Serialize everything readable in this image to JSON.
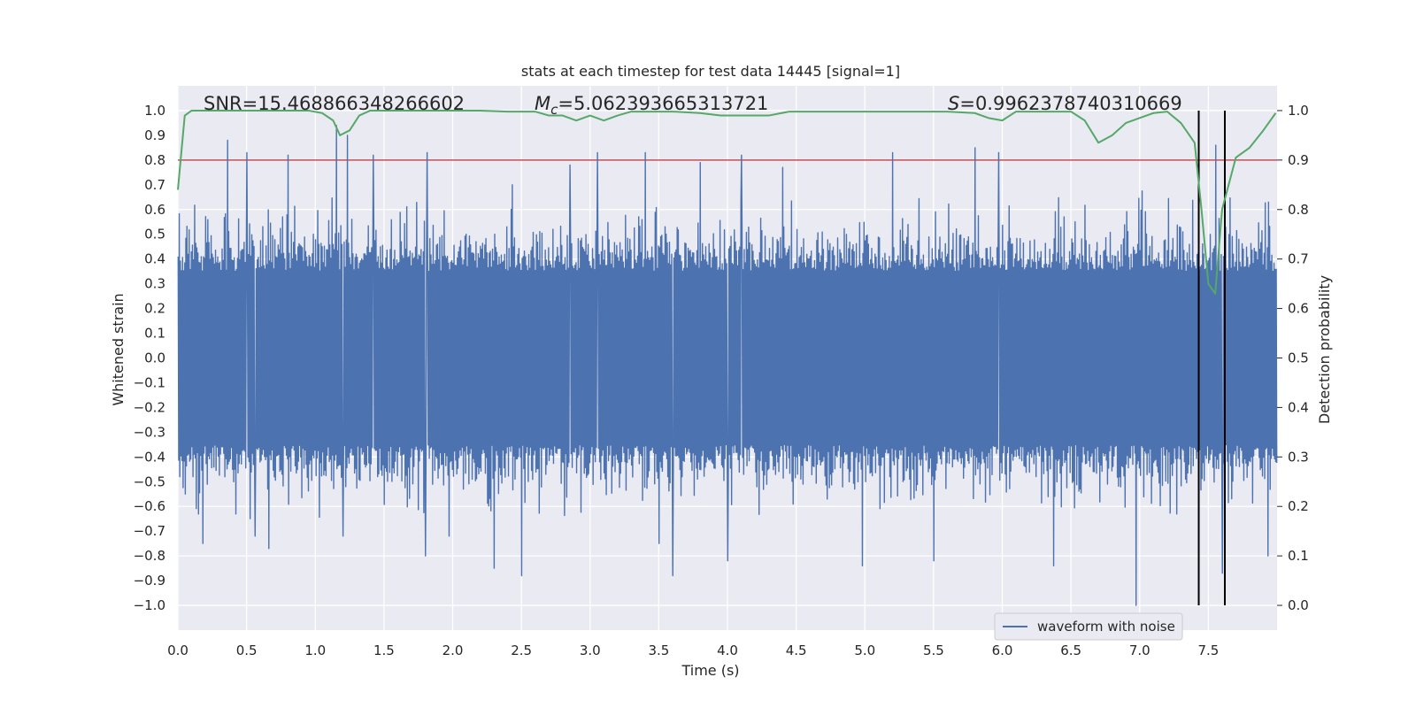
{
  "chart_data": {
    "type": "line",
    "title": "stats at each timestep for test data 14445 [signal=1]",
    "xlabel": "Time (s)",
    "ylabel_left": "Whitened strain",
    "ylabel_right": "Detection probability",
    "xlim": [
      0,
      8
    ],
    "ylim_left": [
      -1.1,
      1.1
    ],
    "ylim_right": [
      -0.05,
      1.05
    ],
    "grid": true,
    "x_ticks": [
      0.0,
      0.5,
      1.0,
      1.5,
      2.0,
      2.5,
      3.0,
      3.5,
      4.0,
      4.5,
      5.0,
      5.5,
      6.0,
      6.5,
      7.0,
      7.5
    ],
    "x_tick_labels": [
      "0.0",
      "0.5",
      "1.0",
      "1.5",
      "2.0",
      "2.5",
      "3.0",
      "3.5",
      "4.0",
      "4.5",
      "5.0",
      "5.5",
      "6.0",
      "6.5",
      "7.0",
      "7.5"
    ],
    "y_left_ticks": [
      -1.0,
      -0.9,
      -0.8,
      -0.7,
      -0.6,
      -0.5,
      -0.4,
      -0.3,
      -0.2,
      -0.1,
      0.0,
      0.1,
      0.2,
      0.3,
      0.4,
      0.5,
      0.6,
      0.7,
      0.8,
      0.9,
      1.0
    ],
    "y_left_tick_labels": [
      "−1.0",
      "−0.9",
      "−0.8",
      "−0.7",
      "−0.6",
      "−0.5",
      "−0.4",
      "−0.3",
      "−0.2",
      "−0.1",
      "0.0",
      "0.1",
      "0.2",
      "0.3",
      "0.4",
      "0.5",
      "0.6",
      "0.7",
      "0.8",
      "0.9",
      "1.0"
    ],
    "y_right_ticks": [
      0.0,
      0.1,
      0.2,
      0.3,
      0.4,
      0.5,
      0.6,
      0.7,
      0.8,
      0.9,
      1.0
    ],
    "y_right_tick_labels": [
      "0.0",
      "0.1",
      "0.2",
      "0.3",
      "0.4",
      "0.5",
      "0.6",
      "0.7",
      "0.8",
      "0.9",
      "1.0"
    ],
    "stats": {
      "snr_text": "SNR=15.468866348266602",
      "mc_prefix": "M",
      "mc_sub": "c",
      "mc_value": "=5.062393665313721",
      "s_prefix": "S",
      "s_value": "=0.9962378740310669"
    },
    "threshold": {
      "value": 0.9,
      "axis": "right",
      "color": "#c44e52"
    },
    "event_lines": {
      "x": [
        7.43,
        7.62
      ],
      "color": "#000000"
    },
    "waveform": {
      "name": "waveform with noise",
      "color": "#4c72b0",
      "description_samples_count": 2000,
      "envelope": {
        "core": 0.35,
        "typical_peak": 0.55
      },
      "spikes": [
        {
          "x": 0.05,
          "y": 0.69
        },
        {
          "x": 0.05,
          "y": -0.55
        },
        {
          "x": 0.18,
          "y": -0.75
        },
        {
          "x": 0.36,
          "y": 0.88
        },
        {
          "x": 0.5,
          "y": 0.83
        },
        {
          "x": 0.56,
          "y": -0.72
        },
        {
          "x": 0.66,
          "y": -0.77
        },
        {
          "x": 0.8,
          "y": 0.82
        },
        {
          "x": 1.15,
          "y": 0.94
        },
        {
          "x": 1.2,
          "y": -0.72
        },
        {
          "x": 1.23,
          "y": 0.9
        },
        {
          "x": 1.42,
          "y": 0.82
        },
        {
          "x": 1.8,
          "y": -0.8
        },
        {
          "x": 1.81,
          "y": 0.83
        },
        {
          "x": 1.97,
          "y": -0.72
        },
        {
          "x": 2.3,
          "y": -0.85
        },
        {
          "x": 2.43,
          "y": 0.7
        },
        {
          "x": 2.5,
          "y": -0.88
        },
        {
          "x": 2.85,
          "y": 0.78
        },
        {
          "x": 3.05,
          "y": 0.83
        },
        {
          "x": 3.4,
          "y": 0.83
        },
        {
          "x": 3.5,
          "y": -0.75
        },
        {
          "x": 3.6,
          "y": -0.88
        },
        {
          "x": 3.8,
          "y": 0.79
        },
        {
          "x": 4.0,
          "y": -0.82
        },
        {
          "x": 4.1,
          "y": 0.82
        },
        {
          "x": 4.4,
          "y": 0.77
        },
        {
          "x": 4.98,
          "y": -0.84
        },
        {
          "x": 5.2,
          "y": 0.83
        },
        {
          "x": 5.5,
          "y": -0.82
        },
        {
          "x": 5.8,
          "y": 0.85
        },
        {
          "x": 5.97,
          "y": 0.83
        },
        {
          "x": 6.37,
          "y": -0.84
        },
        {
          "x": 6.97,
          "y": -1.0
        },
        {
          "x": 7.55,
          "y": 0.86
        },
        {
          "x": 7.6,
          "y": -0.87
        },
        {
          "x": 7.93,
          "y": -0.8
        }
      ]
    },
    "probability": {
      "name": "detection probability",
      "color": "#55a868",
      "x": [
        0.0,
        0.05,
        0.1,
        0.2,
        0.4,
        0.6,
        0.8,
        0.95,
        1.05,
        1.13,
        1.18,
        1.25,
        1.32,
        1.4,
        1.6,
        1.8,
        2.0,
        2.2,
        2.4,
        2.5,
        2.6,
        2.7,
        2.8,
        2.9,
        3.0,
        3.1,
        3.2,
        3.3,
        3.4,
        3.6,
        3.8,
        3.95,
        4.1,
        4.3,
        4.45,
        4.6,
        4.8,
        5.0,
        5.2,
        5.4,
        5.6,
        5.8,
        5.9,
        6.0,
        6.1,
        6.2,
        6.3,
        6.5,
        6.6,
        6.7,
        6.8,
        6.9,
        7.0,
        7.1,
        7.2,
        7.3,
        7.35,
        7.4,
        7.45,
        7.5,
        7.55,
        7.6,
        7.7,
        7.8,
        7.9,
        7.99
      ],
      "y": [
        0.84,
        0.99,
        1.0,
        1.0,
        1.0,
        1.0,
        1.0,
        1.0,
        0.995,
        0.98,
        0.95,
        0.96,
        0.99,
        1.0,
        1.0,
        1.0,
        1.0,
        1.0,
        0.998,
        0.998,
        0.998,
        0.99,
        0.99,
        0.98,
        0.99,
        0.98,
        0.99,
        0.998,
        0.998,
        0.998,
        0.995,
        0.99,
        0.99,
        0.99,
        0.998,
        0.998,
        0.998,
        0.998,
        0.998,
        0.998,
        0.998,
        0.995,
        0.985,
        0.98,
        0.998,
        0.998,
        0.998,
        0.998,
        0.98,
        0.935,
        0.95,
        0.975,
        0.985,
        0.995,
        0.998,
        0.975,
        0.955,
        0.935,
        0.8,
        0.65,
        0.63,
        0.8,
        0.905,
        0.925,
        0.96,
        0.995
      ]
    },
    "legend": {
      "entries": [
        "waveform with noise"
      ],
      "placement": "bottom-right"
    }
  }
}
